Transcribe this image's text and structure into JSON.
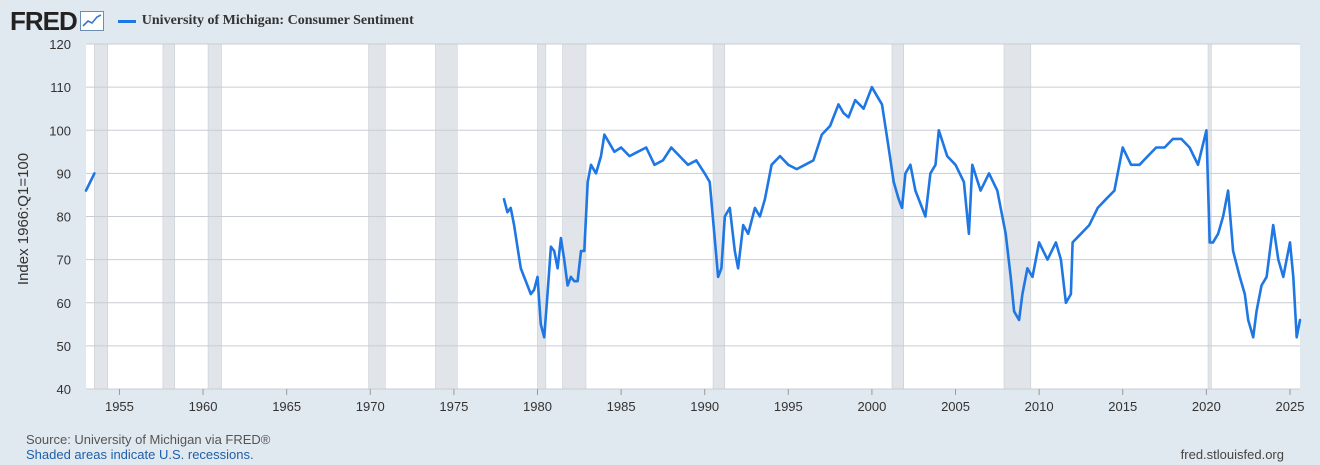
{
  "header": {
    "logo": "FRED",
    "icon": "line-chart-icon"
  },
  "footer": {
    "source": "Source: University of Michigan via FRED®",
    "note": "Shaded areas indicate U.S. recessions.",
    "url": "fred.stlouisfed.org"
  },
  "colors": {
    "line": "#1f77e3",
    "recession": "#e1e5ea",
    "grid": "#c8cdd3",
    "background": "#e1e9f0",
    "plot": "#ffffff"
  },
  "chart_data": {
    "type": "line",
    "title": "",
    "ylabel": "Index 1966:Q1=100",
    "xlabel": "",
    "xlim": [
      1953.0,
      2025.6
    ],
    "ylim": [
      40,
      120
    ],
    "yticks": [
      40,
      50,
      60,
      70,
      80,
      90,
      100,
      110,
      120
    ],
    "xticks": [
      1955,
      1960,
      1965,
      1970,
      1975,
      1980,
      1985,
      1990,
      1995,
      2000,
      2005,
      2010,
      2015,
      2020,
      2025
    ],
    "grid": true,
    "legend": "top-left",
    "recessions": [
      [
        1953.5,
        1954.3
      ],
      [
        1957.6,
        1958.3
      ],
      [
        1960.3,
        1961.1
      ],
      [
        1969.9,
        1970.9
      ],
      [
        1973.9,
        1975.2
      ],
      [
        1980.0,
        1980.5
      ],
      [
        1981.5,
        1982.9
      ],
      [
        1990.5,
        1991.2
      ],
      [
        2001.2,
        2001.9
      ],
      [
        2007.9,
        2009.5
      ],
      [
        2020.1,
        2020.3
      ]
    ],
    "series": [
      {
        "name": "University of Michigan: Consumer Sentiment",
        "segments": [
          {
            "x": [
              1953.0,
              1953.25,
              1953.5
            ],
            "y": [
              86,
              88,
              90
            ]
          },
          {
            "x": [
              1978.0,
              1978.2,
              1978.4,
              1978.6,
              1978.8,
              1979.0,
              1979.2,
              1979.4,
              1979.6,
              1979.8,
              1980.0,
              1980.2,
              1980.4,
              1980.6,
              1980.8,
              1981.0,
              1981.2,
              1981.4,
              1981.6,
              1981.8,
              1982.0,
              1982.2,
              1982.4,
              1982.6,
              1982.8,
              1983.0,
              1983.2,
              1983.5,
              1983.8,
              1984.0,
              1984.3,
              1984.6,
              1985.0,
              1985.5,
              1986.0,
              1986.5,
              1987.0,
              1987.5,
              1988.0,
              1988.5,
              1989.0,
              1989.5,
              1990.0,
              1990.3,
              1990.6,
              1990.8,
              1991.0,
              1991.2,
              1991.5,
              1991.8,
              1992.0,
              1992.3,
              1992.6,
              1993.0,
              1993.3,
              1993.6,
              1994.0,
              1994.5,
              1995.0,
              1995.5,
              1996.0,
              1996.5,
              1997.0,
              1997.5,
              1998.0,
              1998.3,
              1998.6,
              1999.0,
              1999.5,
              2000.0,
              2000.3,
              2000.6,
              2001.0,
              2001.3,
              2001.6,
              2001.8,
              2002.0,
              2002.3,
              2002.6,
              2003.0,
              2003.2,
              2003.5,
              2003.8,
              2004.0,
              2004.5,
              2005.0,
              2005.5,
              2005.8,
              2006.0,
              2006.5,
              2007.0,
              2007.5,
              2008.0,
              2008.3,
              2008.5,
              2008.8,
              2009.0,
              2009.3,
              2009.6,
              2010.0,
              2010.5,
              2011.0,
              2011.3,
              2011.6,
              2011.9,
              2012.0,
              2012.5,
              2013.0,
              2013.5,
              2014.0,
              2014.5,
              2015.0,
              2015.5,
              2016.0,
              2016.5,
              2017.0,
              2017.5,
              2018.0,
              2018.5,
              2019.0,
              2019.5,
              2020.0,
              2020.2,
              2020.4,
              2020.7,
              2021.0,
              2021.3,
              2021.6,
              2022.0,
              2022.3,
              2022.5,
              2022.8,
              2023.0,
              2023.3,
              2023.6,
              2024.0,
              2024.3,
              2024.6,
              2024.8,
              2025.0,
              2025.2,
              2025.4,
              2025.6
            ],
            "y": [
              84,
              81,
              82,
              78,
              73,
              68,
              66,
              64,
              62,
              63,
              66,
              55,
              52,
              62,
              73,
              72,
              68,
              75,
              70,
              64,
              66,
              65,
              65,
              72,
              72,
              88,
              92,
              90,
              94,
              99,
              97,
              95,
              96,
              94,
              95,
              96,
              92,
              93,
              96,
              94,
              92,
              93,
              90,
              88,
              75,
              66,
              68,
              80,
              82,
              72,
              68,
              78,
              76,
              82,
              80,
              84,
              92,
              94,
              92,
              91,
              92,
              93,
              99,
              101,
              106,
              104,
              103,
              107,
              105,
              110,
              108,
              106,
              96,
              88,
              84,
              82,
              90,
              92,
              86,
              82,
              80,
              90,
              92,
              100,
              94,
              92,
              88,
              76,
              92,
              86,
              90,
              86,
              76,
              66,
              58,
              56,
              62,
              68,
              66,
              74,
              70,
              74,
              70,
              60,
              62,
              74,
              76,
              78,
              82,
              84,
              86,
              96,
              92,
              92,
              94,
              96,
              96,
              98,
              98,
              96,
              92,
              100,
              74,
              74,
              76,
              80,
              86,
              72,
              66,
              62,
              56,
              52,
              58,
              64,
              66,
              78,
              70,
              66,
              70,
              74,
              66,
              52,
              56
            ]
          }
        ]
      }
    ]
  }
}
